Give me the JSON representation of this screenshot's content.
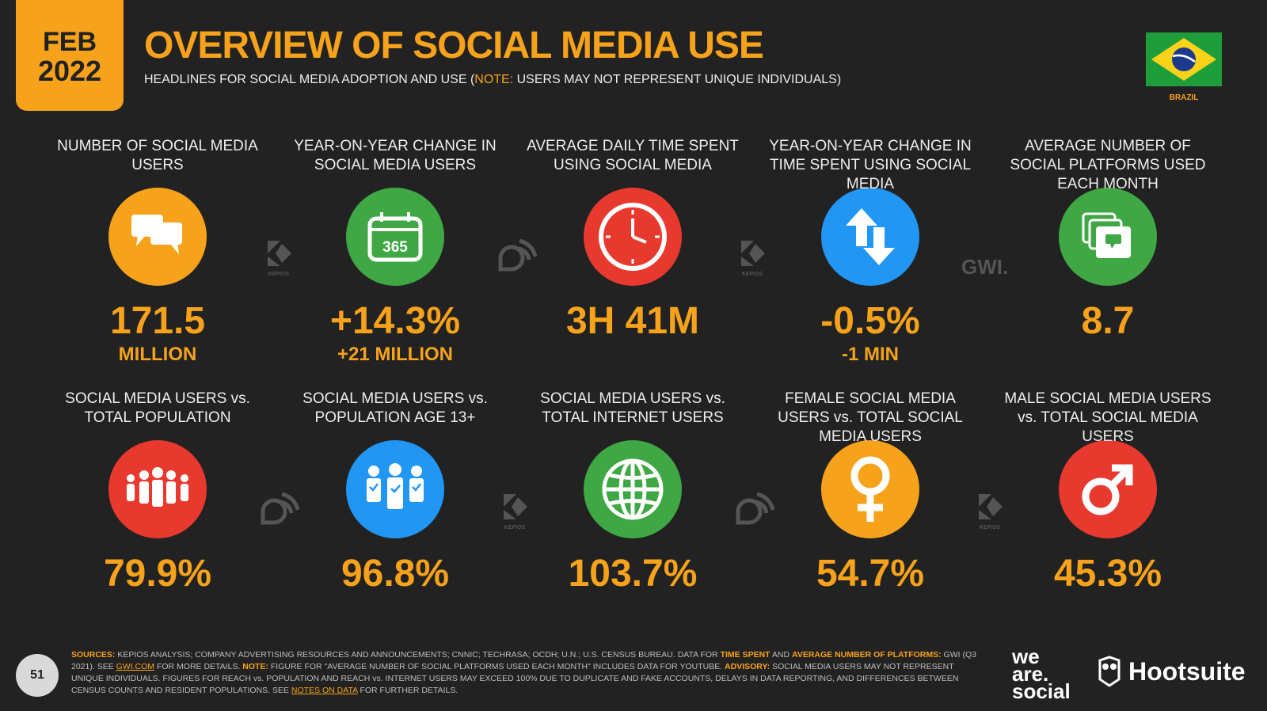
{
  "header": {
    "month": "FEB",
    "year": "2022",
    "title": "OVERVIEW OF SOCIAL MEDIA USE",
    "subtitle_pre": "HEADLINES FOR SOCIAL MEDIA ADOPTION AND USE (",
    "subtitle_note": "NOTE:",
    "subtitle_post": " USERS MAY NOT REPRESENT UNIQUE INDIVIDUALS)",
    "country": "BRAZIL"
  },
  "stats_row1": [
    {
      "label": "NUMBER OF SOCIAL MEDIA USERS",
      "value": "171.5",
      "sub": "MILLION",
      "color": "#F7A21B",
      "icon": "speech-bubbles-icon"
    },
    {
      "label": "YEAR-ON-YEAR CHANGE IN SOCIAL MEDIA USERS",
      "value": "+14.3%",
      "sub": "+21 MILLION",
      "color": "#3FA844",
      "icon": "calendar-365-icon",
      "icon_text": "365"
    },
    {
      "label": "AVERAGE DAILY TIME SPENT USING SOCIAL MEDIA",
      "value": "3H 41M",
      "sub": "",
      "color": "#E8392F",
      "icon": "clock-icon"
    },
    {
      "label": "YEAR-ON-YEAR CHANGE IN TIME SPENT USING SOCIAL MEDIA",
      "value": "-0.5%",
      "sub": "-1 MIN",
      "color": "#2196F3",
      "icon": "up-down-arrows-icon"
    },
    {
      "label": "AVERAGE NUMBER OF SOCIAL PLATFORMS USED EACH MONTH",
      "value": "8.7",
      "sub": "",
      "color": "#3FA844",
      "icon": "stacked-screens-icon"
    }
  ],
  "stats_row2": [
    {
      "label": "SOCIAL MEDIA USERS vs. TOTAL POPULATION",
      "value": "79.9%",
      "color": "#E8392F",
      "icon": "people-group-icon"
    },
    {
      "label": "SOCIAL MEDIA USERS vs. POPULATION AGE 13+",
      "value": "96.8%",
      "color": "#2196F3",
      "icon": "people-checked-icon"
    },
    {
      "label": "SOCIAL MEDIA USERS vs. TOTAL INTERNET USERS",
      "value": "103.7%",
      "color": "#3FA844",
      "icon": "globe-icon"
    },
    {
      "label": "FEMALE SOCIAL MEDIA USERS vs. TOTAL SOCIAL MEDIA USERS",
      "value": "54.7%",
      "color": "#F7A21B",
      "icon": "female-symbol-icon"
    },
    {
      "label": "MALE SOCIAL MEDIA USERS vs. TOTAL SOCIAL MEDIA USERS",
      "value": "45.3%",
      "color": "#E8392F",
      "icon": "male-symbol-icon"
    }
  ],
  "separators": {
    "kepios": "KEPIOS",
    "gwi": "GWI."
  },
  "footer": {
    "page": "51",
    "sources_label": "SOURCES:",
    "text1": " KEPIOS ANALYSIS; COMPANY ADVERTISING RESOURCES AND ANNOUNCEMENTS; CNNIC; TECHRASA; OCDH; U.N.; U.S. CENSUS BUREAU. DATA FOR ",
    "hl1": "TIME SPENT",
    "text2": " AND ",
    "hl2": "AVERAGE NUMBER OF PLATFORMS:",
    "text3": " GWI (Q3 2021). SEE ",
    "link1": "GWI.COM",
    "text4": " FOR MORE DETAILS. ",
    "note_label": "NOTE:",
    "text5": " FIGURE FOR \"AVERAGE NUMBER OF SOCIAL PLATFORMS USED EACH MONTH\" INCLUDES DATA FOR YOUTUBE. ",
    "advisory_label": "ADVISORY:",
    "text6": " SOCIAL MEDIA USERS MAY NOT REPRESENT UNIQUE INDIVIDUALS. FIGURES FOR REACH vs. POPULATION AND REACH vs. INTERNET USERS MAY EXCEED 100% DUE TO DUPLICATE AND FAKE ACCOUNTS, DELAYS IN DATA REPORTING, AND DIFFERENCES BETWEEN CENSUS COUNTS AND RESIDENT POPULATIONS. SEE ",
    "link2": "NOTES ON DATA",
    "text7": " FOR FURTHER DETAILS.",
    "brand1_l1": "we",
    "brand1_l2": "are.",
    "brand1_l3": "social",
    "brand2": "Hootsuite"
  }
}
